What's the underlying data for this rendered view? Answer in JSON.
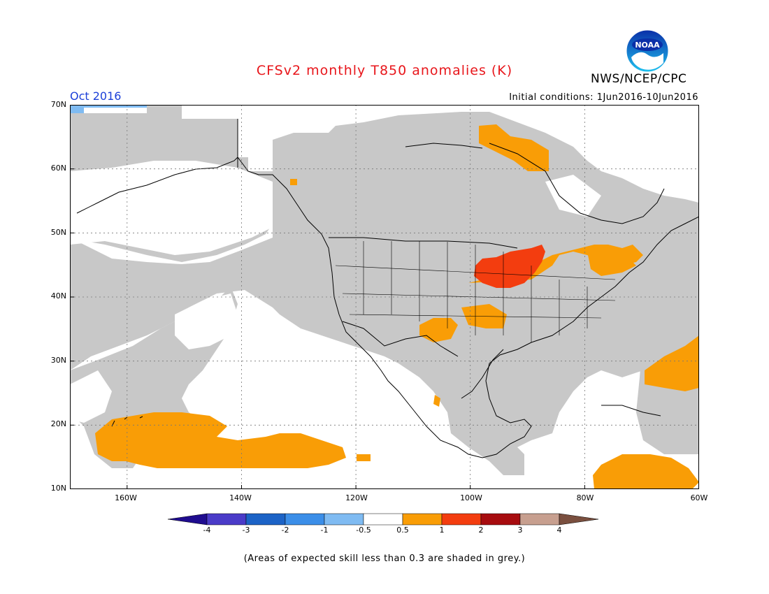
{
  "title": "CFSv2 monthly T850 anomalies (K)",
  "agency": "NWS/NCEP/CPC",
  "logo_text": "NOAA",
  "valid_month": "Oct 2016",
  "initial_conditions": "Initial conditions: 1Jun2016-10Jun2016",
  "footnote": "(Areas of expected skill less than 0.3 are shaded in grey.)",
  "map": {
    "lat_labels": [
      "70N",
      "60N",
      "50N",
      "40N",
      "30N",
      "20N",
      "10N"
    ],
    "lon_labels": [
      "160W",
      "140W",
      "120W",
      "100W",
      "80W",
      "60W"
    ],
    "lat_range": [
      10,
      70
    ],
    "lon_range": [
      -170,
      -60
    ]
  },
  "colorbar": {
    "labels": [
      "-4",
      "-3",
      "-2",
      "-1",
      "-0.5",
      "0.5",
      "1",
      "2",
      "3",
      "4"
    ],
    "colors": [
      "#1f0c8f",
      "#4a3bc8",
      "#1c63c6",
      "#3b8ee8",
      "#7fbbf2",
      "#ffffff",
      "#f99d06",
      "#f33d0f",
      "#a70c0f",
      "#c79f8f",
      "#7a4f3f"
    ]
  },
  "colors": {
    "skill_grey": "#c8c8c8",
    "anomaly_05_1": "#f99d06",
    "anomaly_1_2": "#f33d0f",
    "anomaly_neg": "#7fbbf2"
  }
}
